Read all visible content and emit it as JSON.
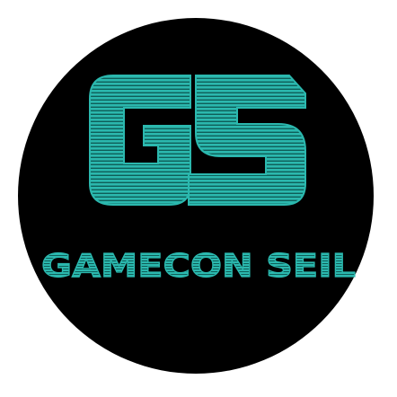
{
  "logo": {
    "monogram": "GS",
    "name": "GAMECON SEIL"
  },
  "colors": {
    "accent": "#2BB8AE",
    "stripe_dark": "#0E5E58",
    "background_disc": "#000000",
    "page": "#FFFFFF"
  }
}
